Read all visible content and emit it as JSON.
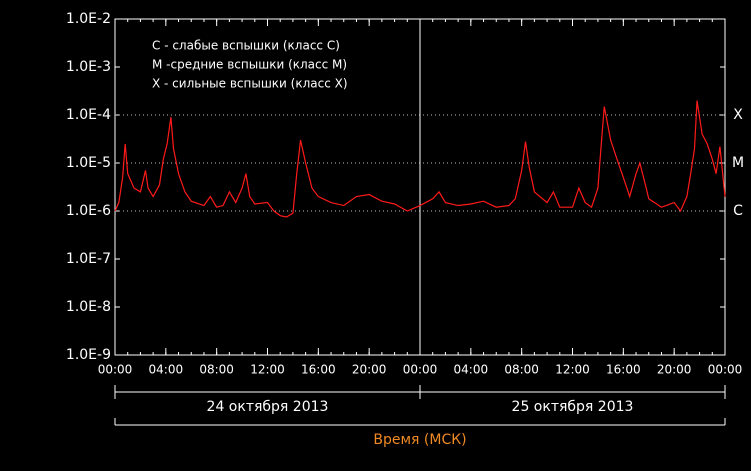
{
  "chart_data": {
    "type": "line",
    "x_title": "Время (МСК)",
    "log_y": true,
    "xlim": [
      0,
      48
    ],
    "ylim": [
      1e-09,
      0.01
    ],
    "xticks": [
      {
        "value": 0,
        "label": "00:00"
      },
      {
        "value": 4,
        "label": "04:00"
      },
      {
        "value": 8,
        "label": "08:00"
      },
      {
        "value": 12,
        "label": "12:00"
      },
      {
        "value": 16,
        "label": "16:00"
      },
      {
        "value": 20,
        "label": "20:00"
      },
      {
        "value": 24,
        "label": "00:00"
      },
      {
        "value": 28,
        "label": "04:00"
      },
      {
        "value": 32,
        "label": "08:00"
      },
      {
        "value": 36,
        "label": "12:00"
      },
      {
        "value": 40,
        "label": "16:00"
      },
      {
        "value": 44,
        "label": "20:00"
      },
      {
        "value": 48,
        "label": "00:00"
      }
    ],
    "yticks": [
      {
        "value": 0.01,
        "label": "1.0E-2"
      },
      {
        "value": 0.001,
        "label": "1.0E-3"
      },
      {
        "value": 0.0001,
        "label": "1.0E-4"
      },
      {
        "value": 1e-05,
        "label": "1.0E-5"
      },
      {
        "value": 1e-06,
        "label": "1.0E-6"
      },
      {
        "value": 1e-07,
        "label": "1.0E-7"
      },
      {
        "value": 1e-08,
        "label": "1.0E-8"
      },
      {
        "value": 1e-09,
        "label": "1.0E-9"
      }
    ],
    "class_levels": [
      {
        "value": 0.0001,
        "label": "X"
      },
      {
        "value": 1e-05,
        "label": "M"
      },
      {
        "value": 1e-06,
        "label": "C"
      }
    ],
    "date_labels": [
      "24 октября 2013",
      "25 октября 2013"
    ],
    "annotations": [
      "C - слабые вспышки (класс C)",
      "M -средние вспышки (класс M)",
      "X - сильные вспышки (класс X)"
    ],
    "color": "#ff1a1a",
    "x": [
      0,
      0.3,
      0.6,
      0.8,
      1.0,
      1.5,
      2.0,
      2.4,
      2.6,
      3.0,
      3.5,
      3.8,
      4.1,
      4.4,
      4.6,
      5.0,
      5.5,
      6,
      7,
      7.5,
      8,
      8.5,
      9,
      9.5,
      10,
      10.3,
      10.6,
      11,
      12,
      12.5,
      13,
      13.5,
      14,
      14.3,
      14.6,
      15,
      15.5,
      16,
      17,
      18,
      19,
      20,
      21,
      22,
      23,
      24,
      25,
      25.5,
      26,
      27,
      28,
      29,
      30,
      31,
      31.5,
      32,
      32.3,
      32.6,
      33,
      34,
      34.5,
      35,
      36,
      36.5,
      37,
      37.5,
      38,
      38.2,
      38.5,
      39,
      39.5,
      40,
      40.5,
      41,
      41.3,
      41.8,
      42,
      43,
      44,
      44.5,
      45,
      45.3,
      45.6,
      45.8,
      46.2,
      46.6,
      47,
      47.3,
      47.6,
      48
    ],
    "values": [
      1e-06,
      1.5e-06,
      5e-06,
      2.5e-05,
      6e-06,
      3e-06,
      2.5e-06,
      7e-06,
      3e-06,
      2e-06,
      3.5e-06,
      1.2e-05,
      2.5e-05,
      9e-05,
      2e-05,
      6e-06,
      2.5e-06,
      1.6e-06,
      1.3e-06,
      2e-06,
      1.2e-06,
      1.3e-06,
      2.5e-06,
      1.5e-06,
      3e-06,
      6e-06,
      2e-06,
      1.4e-06,
      1.5e-06,
      1e-06,
      8e-07,
      7.5e-07,
      9e-07,
      6e-06,
      3e-05,
      1e-05,
      3e-06,
      2e-06,
      1.5e-06,
      1.3e-06,
      2e-06,
      2.2e-06,
      1.6e-06,
      1.4e-06,
      1e-06,
      1.3e-06,
      1.8e-06,
      2.5e-06,
      1.5e-06,
      1.3e-06,
      1.4e-06,
      1.6e-06,
      1.2e-06,
      1.3e-06,
      1.8e-06,
      7e-06,
      2.8e-05,
      8e-06,
      2.5e-06,
      1.5e-06,
      2.5e-06,
      1.2e-06,
      1.2e-06,
      3e-06,
      1.5e-06,
      1.2e-06,
      3e-06,
      1.5e-05,
      0.00015,
      3e-05,
      1.2e-05,
      5e-06,
      2e-06,
      6e-06,
      1e-05,
      3e-06,
      1.8e-06,
      1.2e-06,
      1.5e-06,
      1e-06,
      2e-06,
      6e-06,
      2e-05,
      0.0002,
      4e-05,
      2.5e-05,
      1.2e-05,
      6e-06,
      2.2e-05,
      2e-06
    ]
  }
}
